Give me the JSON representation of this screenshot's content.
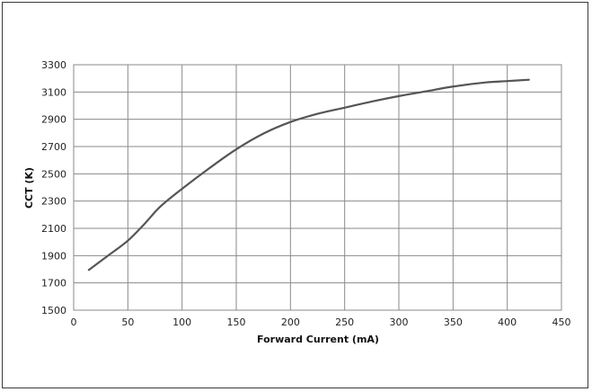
{
  "chart_data": {
    "type": "line",
    "title": "",
    "xlabel": "Forward Current (mA)",
    "ylabel": "CCT (K)",
    "xlim": [
      0,
      450
    ],
    "ylim": [
      1500,
      3300
    ],
    "xticks": [
      0,
      50,
      100,
      150,
      200,
      250,
      300,
      350,
      400,
      450
    ],
    "yticks": [
      1500,
      1700,
      1900,
      2100,
      2300,
      2500,
      2700,
      2900,
      3100,
      3300
    ],
    "grid": true,
    "legend": "none",
    "series": [
      {
        "color": "#555555",
        "x": [
          14,
          30,
          50,
          65,
          80,
          100,
          125,
          150,
          175,
          200,
          225,
          250,
          275,
          300,
          325,
          350,
          380,
          400,
          420
        ],
        "y": [
          1795,
          1890,
          2010,
          2130,
          2260,
          2390,
          2540,
          2680,
          2795,
          2880,
          2940,
          2985,
          3030,
          3070,
          3105,
          3140,
          3170,
          3180,
          3190
        ]
      }
    ]
  }
}
